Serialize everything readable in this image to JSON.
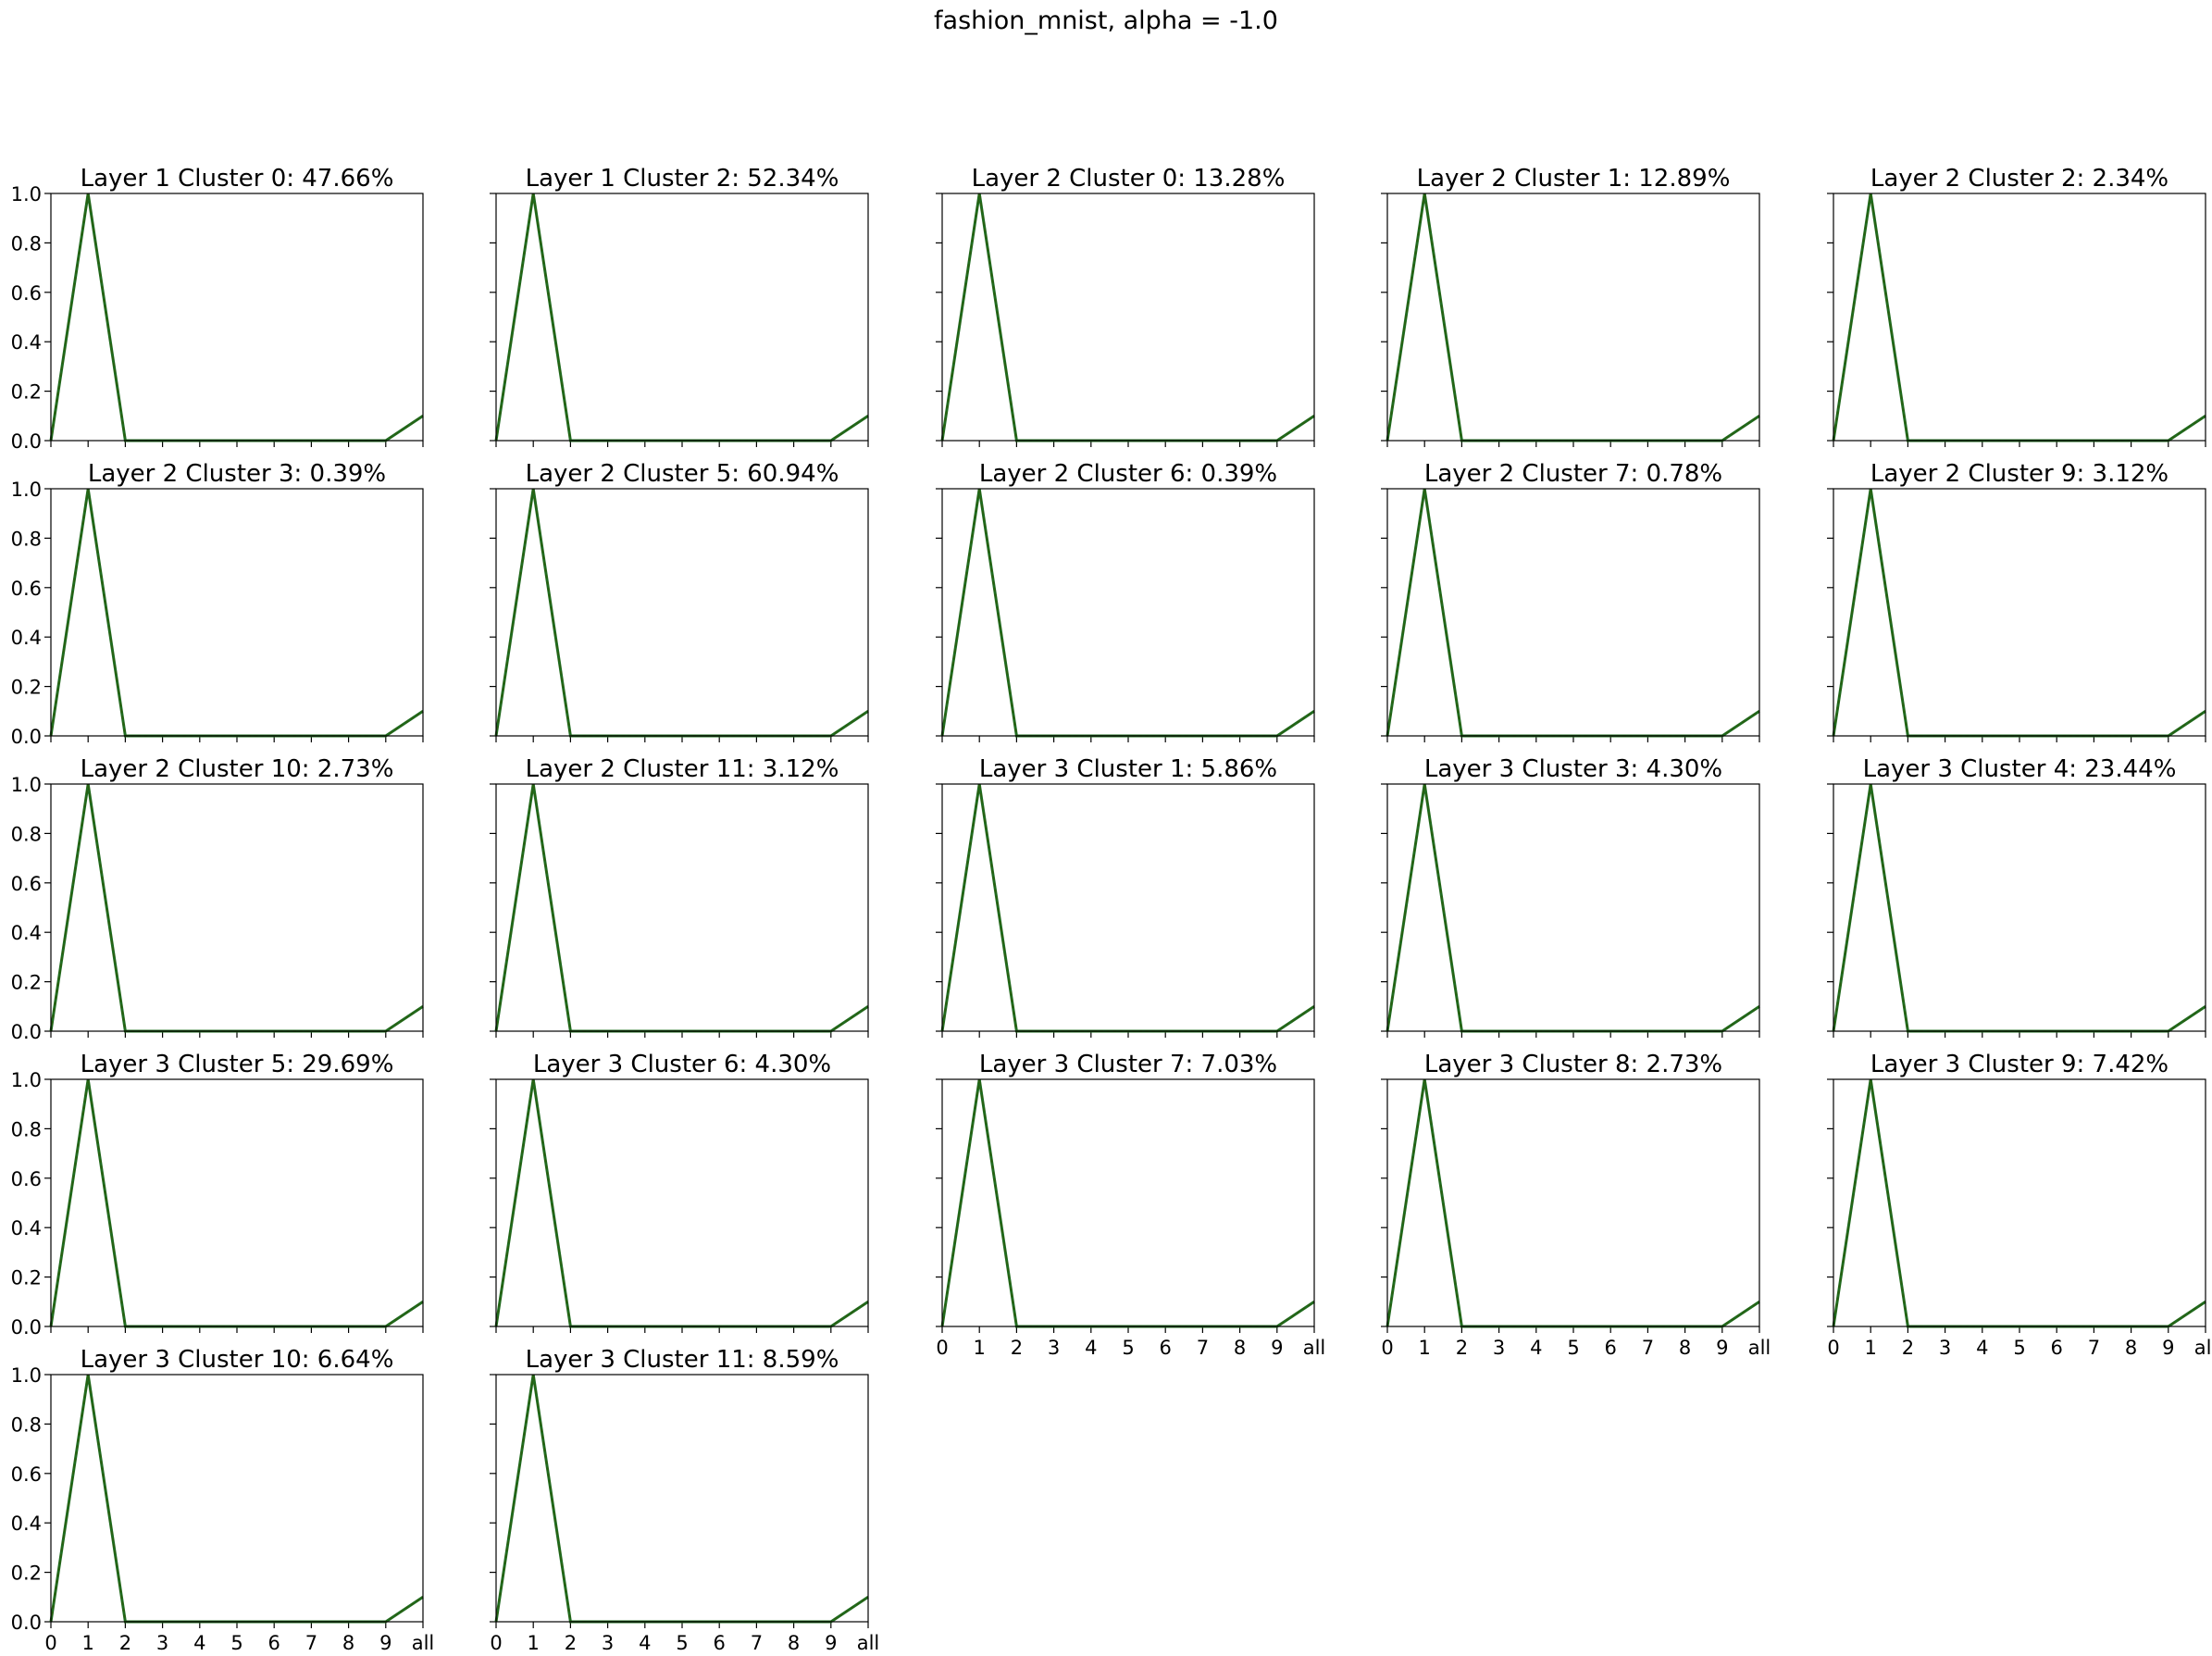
{
  "figure": {
    "title": "fashion_mnist, alpha = -1.0"
  },
  "style": {
    "line_color": "#1f6b1f",
    "line_color_overlay": "#2a5f10",
    "axes_color": "#000000",
    "background": "#ffffff"
  },
  "shared_axes": {
    "x_tick_labels": [
      "0",
      "1",
      "2",
      "3",
      "4",
      "5",
      "6",
      "7",
      "8",
      "9",
      "all"
    ],
    "y_tick_labels": [
      "0.0",
      "0.2",
      "0.4",
      "0.6",
      "0.8",
      "1.0"
    ],
    "ylim": [
      0,
      1
    ]
  },
  "chart_data": [
    {
      "type": "line",
      "title": "Layer 1 Cluster 0: 47.66%",
      "categories": [
        "0",
        "1",
        "2",
        "3",
        "4",
        "5",
        "6",
        "7",
        "8",
        "9",
        "all"
      ],
      "values": [
        0,
        1,
        0,
        0,
        0,
        0,
        0,
        0,
        0,
        0,
        0.1
      ],
      "ylim": [
        0,
        1
      ]
    },
    {
      "type": "line",
      "title": "Layer 1 Cluster 2: 52.34%",
      "categories": [
        "0",
        "1",
        "2",
        "3",
        "4",
        "5",
        "6",
        "7",
        "8",
        "9",
        "all"
      ],
      "values": [
        0,
        1,
        0,
        0,
        0,
        0,
        0,
        0,
        0,
        0,
        0.1
      ],
      "ylim": [
        0,
        1
      ]
    },
    {
      "type": "line",
      "title": "Layer 2 Cluster 0: 13.28%",
      "categories": [
        "0",
        "1",
        "2",
        "3",
        "4",
        "5",
        "6",
        "7",
        "8",
        "9",
        "all"
      ],
      "values": [
        0,
        1,
        0,
        0,
        0,
        0,
        0,
        0,
        0,
        0,
        0.1
      ],
      "ylim": [
        0,
        1
      ]
    },
    {
      "type": "line",
      "title": "Layer 2 Cluster 1: 12.89%",
      "categories": [
        "0",
        "1",
        "2",
        "3",
        "4",
        "5",
        "6",
        "7",
        "8",
        "9",
        "all"
      ],
      "values": [
        0,
        1,
        0,
        0,
        0,
        0,
        0,
        0,
        0,
        0,
        0.1
      ],
      "ylim": [
        0,
        1
      ]
    },
    {
      "type": "line",
      "title": "Layer 2 Cluster 2: 2.34%",
      "categories": [
        "0",
        "1",
        "2",
        "3",
        "4",
        "5",
        "6",
        "7",
        "8",
        "9",
        "all"
      ],
      "values": [
        0,
        1,
        0,
        0,
        0,
        0,
        0,
        0,
        0,
        0,
        0.1
      ],
      "ylim": [
        0,
        1
      ]
    },
    {
      "type": "line",
      "title": "Layer 2 Cluster 3: 0.39%",
      "categories": [
        "0",
        "1",
        "2",
        "3",
        "4",
        "5",
        "6",
        "7",
        "8",
        "9",
        "all"
      ],
      "values": [
        0,
        1,
        0,
        0,
        0,
        0,
        0,
        0,
        0,
        0,
        0.1
      ],
      "ylim": [
        0,
        1
      ]
    },
    {
      "type": "line",
      "title": "Layer 2 Cluster 5: 60.94%",
      "categories": [
        "0",
        "1",
        "2",
        "3",
        "4",
        "5",
        "6",
        "7",
        "8",
        "9",
        "all"
      ],
      "values": [
        0,
        1,
        0,
        0,
        0,
        0,
        0,
        0,
        0,
        0,
        0.1
      ],
      "ylim": [
        0,
        1
      ]
    },
    {
      "type": "line",
      "title": "Layer 2 Cluster 6: 0.39%",
      "categories": [
        "0",
        "1",
        "2",
        "3",
        "4",
        "5",
        "6",
        "7",
        "8",
        "9",
        "all"
      ],
      "values": [
        0,
        1,
        0,
        0,
        0,
        0,
        0,
        0,
        0,
        0,
        0.1
      ],
      "ylim": [
        0,
        1
      ]
    },
    {
      "type": "line",
      "title": "Layer 2 Cluster 7: 0.78%",
      "categories": [
        "0",
        "1",
        "2",
        "3",
        "4",
        "5",
        "6",
        "7",
        "8",
        "9",
        "all"
      ],
      "values": [
        0,
        1,
        0,
        0,
        0,
        0,
        0,
        0,
        0,
        0,
        0.1
      ],
      "ylim": [
        0,
        1
      ]
    },
    {
      "type": "line",
      "title": "Layer 2 Cluster 9: 3.12%",
      "categories": [
        "0",
        "1",
        "2",
        "3",
        "4",
        "5",
        "6",
        "7",
        "8",
        "9",
        "all"
      ],
      "values": [
        0,
        1,
        0,
        0,
        0,
        0,
        0,
        0,
        0,
        0,
        0.1
      ],
      "ylim": [
        0,
        1
      ]
    },
    {
      "type": "line",
      "title": "Layer 2 Cluster 10: 2.73%",
      "categories": [
        "0",
        "1",
        "2",
        "3",
        "4",
        "5",
        "6",
        "7",
        "8",
        "9",
        "all"
      ],
      "values": [
        0,
        1,
        0,
        0,
        0,
        0,
        0,
        0,
        0,
        0,
        0.1
      ],
      "ylim": [
        0,
        1
      ]
    },
    {
      "type": "line",
      "title": "Layer 2 Cluster 11: 3.12%",
      "categories": [
        "0",
        "1",
        "2",
        "3",
        "4",
        "5",
        "6",
        "7",
        "8",
        "9",
        "all"
      ],
      "values": [
        0,
        1,
        0,
        0,
        0,
        0,
        0,
        0,
        0,
        0,
        0.1
      ],
      "ylim": [
        0,
        1
      ]
    },
    {
      "type": "line",
      "title": "Layer 3 Cluster 1: 5.86%",
      "categories": [
        "0",
        "1",
        "2",
        "3",
        "4",
        "5",
        "6",
        "7",
        "8",
        "9",
        "all"
      ],
      "values": [
        0,
        1,
        0,
        0,
        0,
        0,
        0,
        0,
        0,
        0,
        0.1
      ],
      "ylim": [
        0,
        1
      ]
    },
    {
      "type": "line",
      "title": "Layer 3 Cluster 3: 4.30%",
      "categories": [
        "0",
        "1",
        "2",
        "3",
        "4",
        "5",
        "6",
        "7",
        "8",
        "9",
        "all"
      ],
      "values": [
        0,
        1,
        0,
        0,
        0,
        0,
        0,
        0,
        0,
        0,
        0.1
      ],
      "ylim": [
        0,
        1
      ]
    },
    {
      "type": "line",
      "title": "Layer 3 Cluster 4: 23.44%",
      "categories": [
        "0",
        "1",
        "2",
        "3",
        "4",
        "5",
        "6",
        "7",
        "8",
        "9",
        "all"
      ],
      "values": [
        0,
        1,
        0,
        0,
        0,
        0,
        0,
        0,
        0,
        0,
        0.1
      ],
      "ylim": [
        0,
        1
      ]
    },
    {
      "type": "line",
      "title": "Layer 3 Cluster 5: 29.69%",
      "categories": [
        "0",
        "1",
        "2",
        "3",
        "4",
        "5",
        "6",
        "7",
        "8",
        "9",
        "all"
      ],
      "values": [
        0,
        1,
        0,
        0,
        0,
        0,
        0,
        0,
        0,
        0,
        0.1
      ],
      "ylim": [
        0,
        1
      ]
    },
    {
      "type": "line",
      "title": "Layer 3 Cluster 6: 4.30%",
      "categories": [
        "0",
        "1",
        "2",
        "3",
        "4",
        "5",
        "6",
        "7",
        "8",
        "9",
        "all"
      ],
      "values": [
        0,
        1,
        0,
        0,
        0,
        0,
        0,
        0,
        0,
        0,
        0.1
      ],
      "ylim": [
        0,
        1
      ]
    },
    {
      "type": "line",
      "title": "Layer 3 Cluster 7: 7.03%",
      "categories": [
        "0",
        "1",
        "2",
        "3",
        "4",
        "5",
        "6",
        "7",
        "8",
        "9",
        "all"
      ],
      "values": [
        0,
        1,
        0,
        0,
        0,
        0,
        0,
        0,
        0,
        0,
        0.1
      ],
      "ylim": [
        0,
        1
      ]
    },
    {
      "type": "line",
      "title": "Layer 3 Cluster 8: 2.73%",
      "categories": [
        "0",
        "1",
        "2",
        "3",
        "4",
        "5",
        "6",
        "7",
        "8",
        "9",
        "all"
      ],
      "values": [
        0,
        1,
        0,
        0,
        0,
        0,
        0,
        0,
        0,
        0,
        0.1
      ],
      "ylim": [
        0,
        1
      ]
    },
    {
      "type": "line",
      "title": "Layer 3 Cluster 9: 7.42%",
      "categories": [
        "0",
        "1",
        "2",
        "3",
        "4",
        "5",
        "6",
        "7",
        "8",
        "9",
        "all"
      ],
      "values": [
        0,
        1,
        0,
        0,
        0,
        0,
        0,
        0,
        0,
        0,
        0.1
      ],
      "ylim": [
        0,
        1
      ]
    },
    {
      "type": "line",
      "title": "Layer 3 Cluster 10: 6.64%",
      "categories": [
        "0",
        "1",
        "2",
        "3",
        "4",
        "5",
        "6",
        "7",
        "8",
        "9",
        "all"
      ],
      "values": [
        0,
        1,
        0,
        0,
        0,
        0,
        0,
        0,
        0,
        0,
        0.1
      ],
      "ylim": [
        0,
        1
      ]
    },
    {
      "type": "line",
      "title": "Layer 3 Cluster 11: 8.59%",
      "categories": [
        "0",
        "1",
        "2",
        "3",
        "4",
        "5",
        "6",
        "7",
        "8",
        "9",
        "all"
      ],
      "values": [
        0,
        1,
        0,
        0,
        0,
        0,
        0,
        0,
        0,
        0,
        0.1
      ],
      "ylim": [
        0,
        1
      ]
    }
  ]
}
